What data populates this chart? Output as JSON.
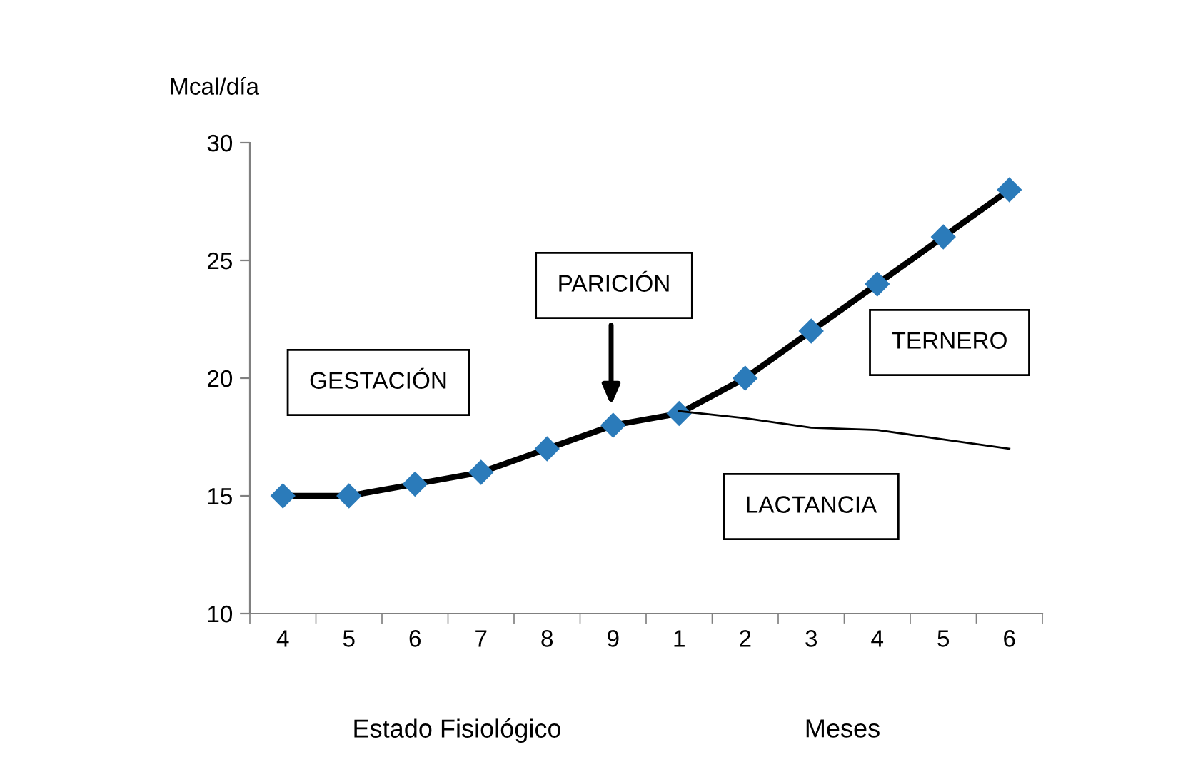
{
  "chart_data": {
    "type": "line",
    "ylabel": "Mcal/día",
    "categories": [
      "4",
      "5",
      "6",
      "7",
      "8",
      "9",
      "1",
      "2",
      "3",
      "4",
      "5",
      "6"
    ],
    "series": [
      {
        "color": "#2b7bba",
        "marker": "diamond",
        "values": [
          15,
          15,
          15.5,
          16,
          17,
          18,
          18.5,
          20,
          22,
          24,
          26,
          28
        ]
      },
      {
        "color": "#000000",
        "marker": "none",
        "values": [
          null,
          null,
          null,
          null,
          null,
          null,
          18.6,
          18.3,
          17.9,
          17.8,
          17.4,
          17.0
        ]
      }
    ],
    "ylim": [
      10,
      30
    ],
    "yticks": [
      10,
      15,
      20,
      25,
      30
    ],
    "grid": false,
    "legend": false,
    "annotations": [
      "GESTACIÓN",
      "PARICIÓN",
      "TERNERO",
      "LACTANCIA",
      "Estado Fisiológico",
      "Meses"
    ]
  }
}
